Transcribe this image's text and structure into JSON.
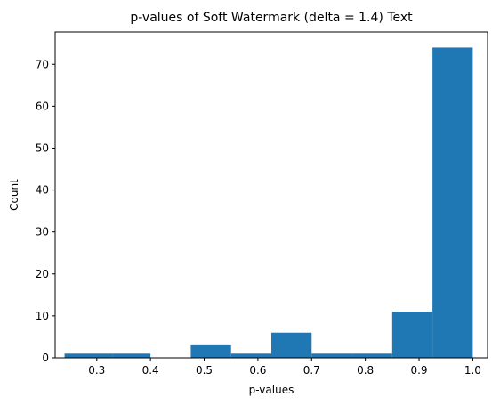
{
  "chart_data": {
    "type": "bar",
    "title": "p-values of Soft Watermark (delta = 1.4) Text",
    "xlabel": "p-values",
    "ylabel": "Count",
    "xlim": [
      0.2225,
      1.0275
    ],
    "ylim": [
      0,
      77.7
    ],
    "xticks": [
      0.3,
      0.4,
      0.5,
      0.6,
      0.7,
      0.8,
      0.9,
      1.0
    ],
    "xtick_labels": [
      "0.3",
      "0.4",
      "0.5",
      "0.6",
      "0.7",
      "0.8",
      "0.9",
      "1.0"
    ],
    "yticks": [
      0,
      10,
      20,
      30,
      40,
      50,
      60,
      70
    ],
    "ytick_labels": [
      "0",
      "10",
      "20",
      "30",
      "40",
      "50",
      "60",
      "70"
    ],
    "bins": [
      {
        "x0": 0.24,
        "x1": 0.33,
        "count": 1
      },
      {
        "x0": 0.33,
        "x1": 0.4,
        "count": 1
      },
      {
        "x0": 0.4,
        "x1": 0.475,
        "count": 0
      },
      {
        "x0": 0.475,
        "x1": 0.55,
        "count": 3
      },
      {
        "x0": 0.55,
        "x1": 0.625,
        "count": 1
      },
      {
        "x0": 0.625,
        "x1": 0.7,
        "count": 6
      },
      {
        "x0": 0.7,
        "x1": 0.775,
        "count": 1
      },
      {
        "x0": 0.775,
        "x1": 0.85,
        "count": 1
      },
      {
        "x0": 0.85,
        "x1": 0.925,
        "count": 11
      },
      {
        "x0": 0.925,
        "x1": 1.0,
        "count": 74
      }
    ],
    "bar_color": "#1f77b4",
    "grid": false
  }
}
